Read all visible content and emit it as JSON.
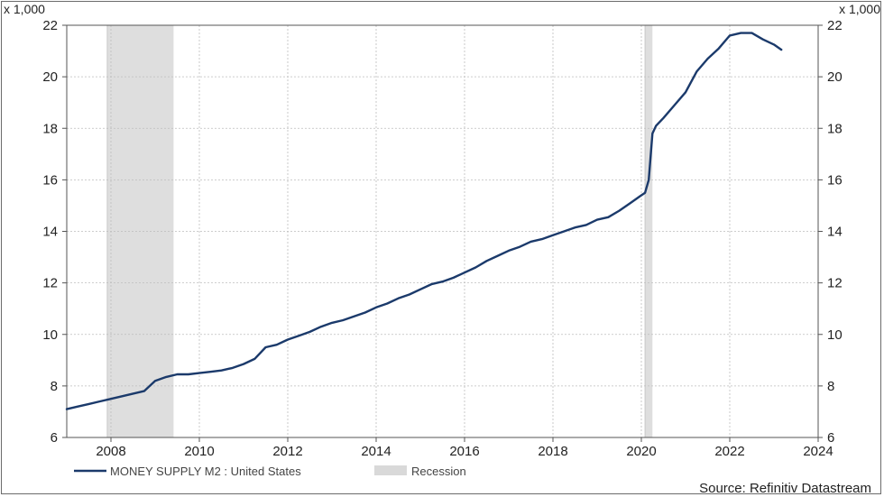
{
  "chart_data": {
    "type": "line",
    "unit_label_left": "x 1,000",
    "unit_label_right": "x 1,000",
    "x_ticks": [
      "2008",
      "2010",
      "2012",
      "2014",
      "2016",
      "2018",
      "2020",
      "2022",
      "2024"
    ],
    "y_ticks": [
      "6",
      "8",
      "10",
      "12",
      "14",
      "16",
      "18",
      "20",
      "22"
    ],
    "xlim": [
      "2007-01",
      "2024-01"
    ],
    "ylim": [
      6,
      22
    ],
    "grid": true,
    "legend_position": "bottom-left",
    "recessions": [
      {
        "start": "2007-12",
        "end": "2009-06"
      },
      {
        "start": "2020-02",
        "end": "2020-04"
      }
    ],
    "series": [
      {
        "name": "MONEY SUPPLY M2 : United States",
        "color": "#1b3a6b",
        "points": [
          [
            "2007-01",
            7.1
          ],
          [
            "2007-04",
            7.2
          ],
          [
            "2007-07",
            7.3
          ],
          [
            "2007-10",
            7.4
          ],
          [
            "2008-01",
            7.5
          ],
          [
            "2008-04",
            7.6
          ],
          [
            "2008-07",
            7.7
          ],
          [
            "2008-10",
            7.8
          ],
          [
            "2009-01",
            8.2
          ],
          [
            "2009-04",
            8.35
          ],
          [
            "2009-07",
            8.45
          ],
          [
            "2009-10",
            8.45
          ],
          [
            "2010-01",
            8.5
          ],
          [
            "2010-04",
            8.55
          ],
          [
            "2010-07",
            8.6
          ],
          [
            "2010-10",
            8.7
          ],
          [
            "2011-01",
            8.85
          ],
          [
            "2011-04",
            9.05
          ],
          [
            "2011-07",
            9.5
          ],
          [
            "2011-10",
            9.6
          ],
          [
            "2012-01",
            9.8
          ],
          [
            "2012-04",
            9.95
          ],
          [
            "2012-07",
            10.1
          ],
          [
            "2012-10",
            10.3
          ],
          [
            "2013-01",
            10.45
          ],
          [
            "2013-04",
            10.55
          ],
          [
            "2013-07",
            10.7
          ],
          [
            "2013-10",
            10.85
          ],
          [
            "2014-01",
            11.05
          ],
          [
            "2014-04",
            11.2
          ],
          [
            "2014-07",
            11.4
          ],
          [
            "2014-10",
            11.55
          ],
          [
            "2015-01",
            11.75
          ],
          [
            "2015-04",
            11.95
          ],
          [
            "2015-07",
            12.05
          ],
          [
            "2015-10",
            12.2
          ],
          [
            "2016-01",
            12.4
          ],
          [
            "2016-04",
            12.6
          ],
          [
            "2016-07",
            12.85
          ],
          [
            "2016-10",
            13.05
          ],
          [
            "2017-01",
            13.25
          ],
          [
            "2017-04",
            13.4
          ],
          [
            "2017-07",
            13.6
          ],
          [
            "2017-10",
            13.7
          ],
          [
            "2018-01",
            13.85
          ],
          [
            "2018-04",
            14.0
          ],
          [
            "2018-07",
            14.15
          ],
          [
            "2018-10",
            14.25
          ],
          [
            "2019-01",
            14.45
          ],
          [
            "2019-04",
            14.55
          ],
          [
            "2019-07",
            14.8
          ],
          [
            "2019-10",
            15.1
          ],
          [
            "2020-01",
            15.4
          ],
          [
            "2020-02",
            15.5
          ],
          [
            "2020-03",
            16.0
          ],
          [
            "2020-04",
            17.8
          ],
          [
            "2020-05",
            18.1
          ],
          [
            "2020-07",
            18.4
          ],
          [
            "2020-10",
            18.9
          ],
          [
            "2021-01",
            19.4
          ],
          [
            "2021-04",
            20.2
          ],
          [
            "2021-07",
            20.7
          ],
          [
            "2021-10",
            21.1
          ],
          [
            "2022-01",
            21.6
          ],
          [
            "2022-04",
            21.7
          ],
          [
            "2022-07",
            21.7
          ],
          [
            "2022-10",
            21.45
          ],
          [
            "2023-01",
            21.25
          ],
          [
            "2023-03",
            21.05
          ]
        ]
      }
    ]
  },
  "legend": {
    "series_label": "MONEY SUPPLY M2 : United States",
    "recession_label": "Recession"
  },
  "source": "Source: Refinitiv Datastream"
}
